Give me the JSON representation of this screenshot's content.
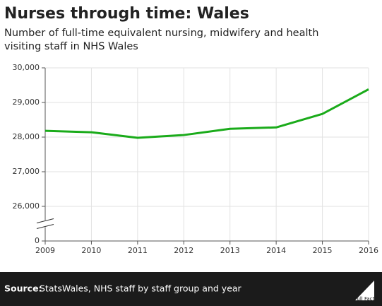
{
  "chart_data": {
    "type": "line",
    "title": "Nurses through time: Wales",
    "subtitle": [
      "Number of full-time equivalent nursing, midwifery and health",
      "visiting staff in NHS Wales"
    ],
    "x": [
      2009,
      2010,
      2011,
      2012,
      2013,
      2014,
      2015,
      2016
    ],
    "xlim": [
      2009,
      2016
    ],
    "xticks": [
      2009,
      2010,
      2011,
      2012,
      2013,
      2014,
      2015,
      2016
    ],
    "series": [
      {
        "name": "Nursing, midwifery and health visiting staff",
        "color": "#1aab1a",
        "values": [
          28180,
          28140,
          27980,
          28060,
          28240,
          28280,
          28670,
          29380
        ]
      }
    ],
    "ylim": [
      0,
      30000
    ],
    "yticks": [
      0,
      {
        "value": 26000,
        "label": "26,000"
      },
      {
        "value": 27000,
        "label": "27,000"
      },
      {
        "value": 28000,
        "label": "28,000"
      },
      {
        "value": 29000,
        "label": "29,000"
      },
      {
        "value": 30000,
        "label": "30,000"
      }
    ],
    "axis_break": [
      0,
      26000
    ],
    "grid": true
  },
  "footer": {
    "source_label": "Source:",
    "source": "StatsWales, NHS staff by staff group and year",
    "logo": "Full Fact"
  }
}
